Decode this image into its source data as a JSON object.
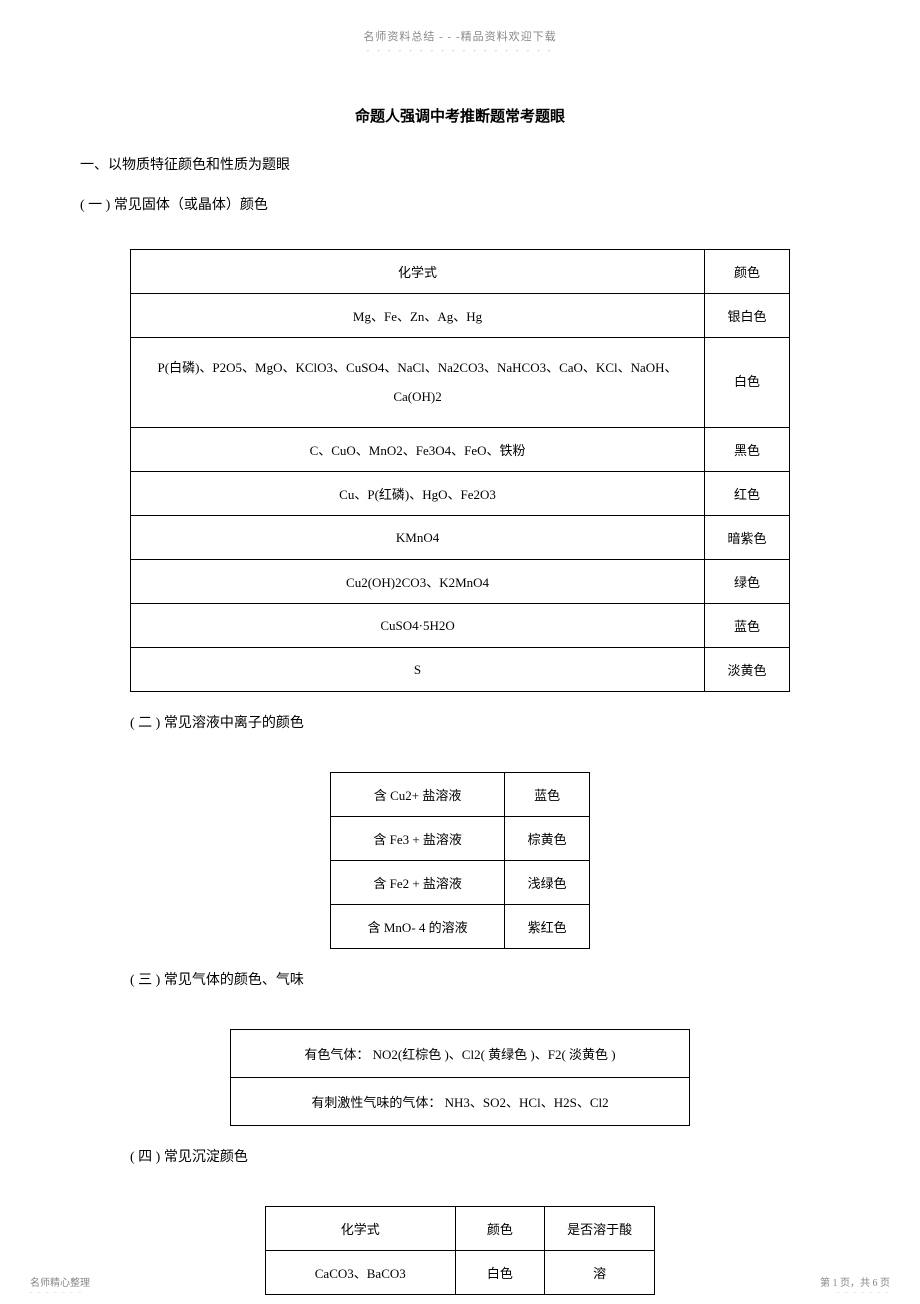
{
  "header": {
    "text": "名师资料总结 - - -精品资料欢迎下载",
    "dots": "- - - - - - - - - - - - - - - - - -"
  },
  "title": "命题人强调中考推断题常考题眼",
  "section1": {
    "heading": "一、以物质特征颜色和性质为题眼",
    "sub": "( 一 ) 常见固体（或晶体）颜色"
  },
  "table1": {
    "header": {
      "col1": "化学式",
      "col2": "颜色"
    },
    "rows": [
      {
        "formula": "Mg、Fe、Zn、Ag、Hg",
        "color": "银白色"
      },
      {
        "formula": "P(白磷)、P2O5、MgO、KClO3、CuSO4、NaCl、Na2CO3、NaHCO3、CaO、KCl、NaOH、Ca(OH)2",
        "color": "白色"
      },
      {
        "formula": "C、CuO、MnO2、Fe3O4、FeO、铁粉",
        "color": "黑色"
      },
      {
        "formula": "Cu、P(红磷)、HgO、Fe2O3",
        "color": "红色"
      },
      {
        "formula": "KMnO4",
        "color": "暗紫色"
      },
      {
        "formula": "Cu2(OH)2CO3、K2MnO4",
        "color": "绿色"
      },
      {
        "formula": "CuSO4·5H2O",
        "color": "蓝色"
      },
      {
        "formula": "S",
        "color": "淡黄色"
      }
    ]
  },
  "section2": {
    "heading": "( 二 ) 常见溶液中离子的颜色"
  },
  "table2": {
    "rows": [
      {
        "ion": "含 Cu2+ 盐溶液",
        "color": "蓝色"
      },
      {
        "ion": "含 Fe3 + 盐溶液",
        "color": "棕黄色"
      },
      {
        "ion": "含 Fe2 + 盐溶液",
        "color": "浅绿色"
      },
      {
        "ion": "含 MnO- 4 的溶液",
        "color": "紫红色"
      }
    ]
  },
  "section3": {
    "heading": "( 三 ) 常见气体的颜色、气味"
  },
  "table3": {
    "rows": [
      {
        "text": "有色气体： NO2(红棕色 )、Cl2( 黄绿色 )、F2( 淡黄色 )"
      },
      {
        "text": "有刺激性气味的气体：  NH3、SO2、HCl、H2S、Cl2"
      }
    ]
  },
  "section4": {
    "heading": "( 四 ) 常见沉淀颜色"
  },
  "table4": {
    "header": {
      "col1": "化学式",
      "col2": "颜色",
      "col3": "是否溶于酸"
    },
    "rows": [
      {
        "formula": "CaCO3、BaCO3",
        "color": "白色",
        "soluble": "溶"
      }
    ]
  },
  "footer": {
    "left": "名师精心整理",
    "right": "第 1 页，共 6 页",
    "dots": "- - - - - - -"
  }
}
